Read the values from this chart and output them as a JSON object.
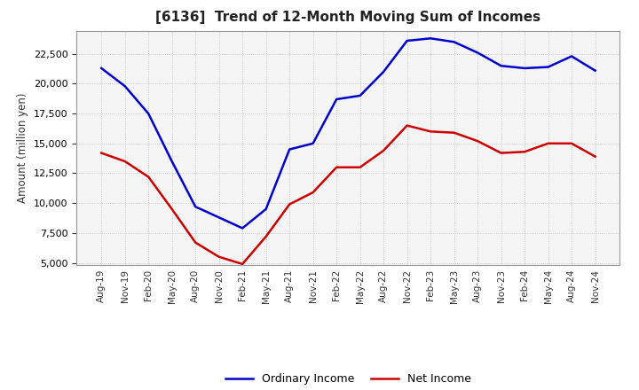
{
  "title": "[6136]  Trend of 12-Month Moving Sum of Incomes",
  "ylabel": "Amount (million yen)",
  "background_color": "#ffffff",
  "plot_background": "#f5f5f5",
  "grid_color": "#bbbbbb",
  "x_labels": [
    "Aug-19",
    "Nov-19",
    "Feb-20",
    "May-20",
    "Aug-20",
    "Nov-20",
    "Feb-21",
    "May-21",
    "Aug-21",
    "Nov-21",
    "Feb-22",
    "May-22",
    "Aug-22",
    "Nov-22",
    "Feb-23",
    "May-23",
    "Aug-23",
    "Nov-23",
    "Feb-24",
    "May-24",
    "Aug-24",
    "Nov-24"
  ],
  "ordinary_income": [
    21300,
    19800,
    17500,
    13500,
    9700,
    8800,
    7900,
    9500,
    14500,
    15000,
    18700,
    19000,
    21000,
    23600,
    23800,
    23500,
    22600,
    21500,
    21300,
    21400,
    22300,
    21100
  ],
  "net_income": [
    14200,
    13500,
    12200,
    9500,
    6700,
    5500,
    4900,
    7200,
    9900,
    10900,
    13000,
    13000,
    14400,
    16500,
    16000,
    15900,
    15200,
    14200,
    14300,
    15000,
    15000,
    13900
  ],
  "ordinary_color": "#0000cc",
  "net_color": "#cc0000",
  "ylim_min": 4800,
  "ylim_max": 24400,
  "yticks": [
    5000,
    7500,
    10000,
    12500,
    15000,
    17500,
    20000,
    22500
  ],
  "legend_ordinary": "Ordinary Income",
  "legend_net": "Net Income",
  "line_width": 1.8
}
